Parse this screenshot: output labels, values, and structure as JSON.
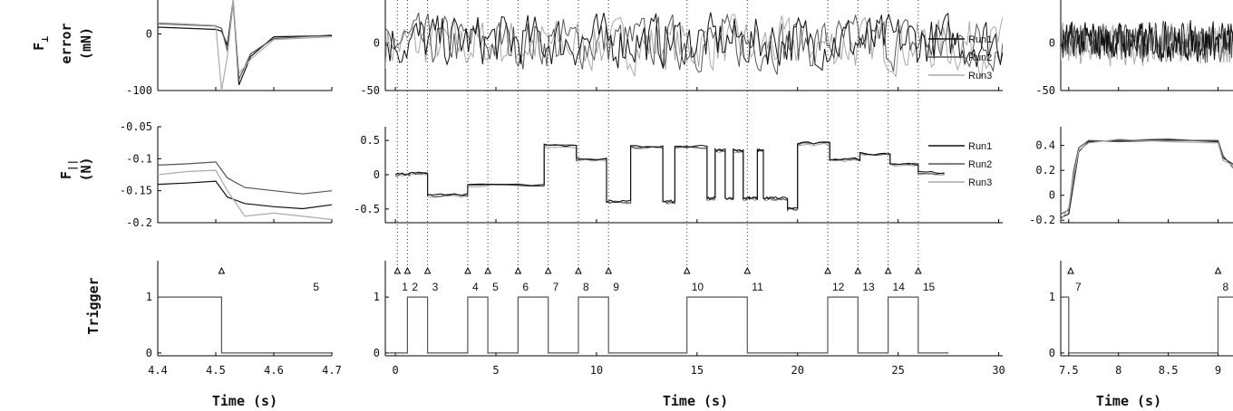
{
  "row_labels": {
    "fperp": {
      "symbol": "F",
      "sub": "⊥",
      "line2": "error",
      "line3": "(mN)"
    },
    "fpar": {
      "symbol": "F",
      "sub": "||",
      "line2": "(N)"
    },
    "trigger": {
      "text": "Trigger"
    }
  },
  "xlabel": "Time (s)",
  "legend": [
    "Run1",
    "Run2",
    "Run3"
  ],
  "series_colors": {
    "Run1": "#111111",
    "Run2": "#555555",
    "Run3": "#aaaaaa"
  },
  "panels": {
    "left": {
      "xticks": [
        "4.4",
        "4.5",
        "4.6",
        "4.7"
      ],
      "xvals": [
        4.4,
        4.5,
        4.6,
        4.7
      ],
      "xlim": [
        4.4,
        4.7
      ]
    },
    "middle": {
      "xticks": [
        "0",
        "5",
        "10",
        "15",
        "20",
        "25",
        "30"
      ],
      "xvals": [
        0,
        5,
        10,
        15,
        20,
        25,
        30
      ],
      "xlim": [
        -0.5,
        30.2
      ]
    },
    "right": {
      "xticks": [
        "7.5",
        "8",
        "8.5",
        "9"
      ],
      "xvals": [
        7.5,
        8,
        8.5,
        9
      ],
      "xlim": [
        7.42,
        9.15
      ]
    }
  },
  "chart_data": [
    {
      "type": "line",
      "panel": "left",
      "row": "F_perp_error",
      "ylabel": "F⊥ error (mN)",
      "yticks": [
        "0",
        "-100"
      ],
      "yvals": [
        0,
        -100
      ],
      "ylim": [
        -100,
        60
      ],
      "series": [
        {
          "name": "Run1",
          "x": [
            4.4,
            4.5,
            4.51,
            4.52,
            4.53,
            4.54,
            4.56,
            4.6,
            4.7
          ],
          "y": [
            12,
            8,
            5,
            -20,
            60,
            -90,
            -40,
            -5,
            -3
          ]
        },
        {
          "name": "Run2",
          "x": [
            4.4,
            4.5,
            4.51,
            4.52,
            4.53,
            4.54,
            4.56,
            4.6,
            4.7
          ],
          "y": [
            18,
            14,
            10,
            -30,
            55,
            -80,
            -35,
            -8,
            -2
          ]
        },
        {
          "name": "Run3",
          "x": [
            4.4,
            4.5,
            4.51,
            4.52,
            4.53,
            4.54,
            4.56,
            4.6,
            4.7
          ],
          "y": [
            20,
            15,
            -100,
            -40,
            60,
            -70,
            -45,
            -10,
            -5
          ]
        }
      ]
    },
    {
      "type": "line",
      "panel": "left",
      "row": "F_parallel",
      "ylabel": "F|| (N)",
      "yticks": [
        "-0.05",
        "-0.1",
        "-0.15",
        "-0.2"
      ],
      "yvals": [
        -0.05,
        -0.1,
        -0.15,
        -0.2
      ],
      "ylim": [
        -0.2,
        -0.05
      ],
      "series": [
        {
          "name": "Run1",
          "x": [
            4.4,
            4.45,
            4.5,
            4.52,
            4.55,
            4.6,
            4.65,
            4.7
          ],
          "y": [
            -0.14,
            -0.138,
            -0.135,
            -0.16,
            -0.17,
            -0.175,
            -0.178,
            -0.172
          ]
        },
        {
          "name": "Run2",
          "x": [
            4.4,
            4.45,
            4.5,
            4.52,
            4.55,
            4.6,
            4.65,
            4.7
          ],
          "y": [
            -0.11,
            -0.108,
            -0.105,
            -0.13,
            -0.145,
            -0.15,
            -0.155,
            -0.15
          ]
        },
        {
          "name": "Run3",
          "x": [
            4.4,
            4.45,
            4.5,
            4.52,
            4.55,
            4.6,
            4.65,
            4.7
          ],
          "y": [
            -0.125,
            -0.12,
            -0.118,
            -0.15,
            -0.19,
            -0.185,
            -0.19,
            -0.195
          ]
        }
      ]
    },
    {
      "type": "line",
      "panel": "left",
      "row": "Trigger",
      "ylabel": "Trigger",
      "yticks": [
        "1",
        "0"
      ],
      "yvals": [
        1,
        0
      ],
      "ylim": [
        -0.05,
        1.65
      ],
      "series": [
        {
          "name": "trigger",
          "x": [
            4.4,
            4.51,
            4.51,
            4.7
          ],
          "y": [
            1,
            1,
            0,
            0
          ]
        }
      ],
      "markers": [
        {
          "x": 4.51,
          "label": ""
        },
        {
          "x": 4.66,
          "label": "5",
          "text_only": true
        }
      ]
    },
    {
      "type": "line",
      "panel": "middle",
      "row": "F_perp_error",
      "ylabel": "F⊥ error (mN)",
      "yticks": [
        "0",
        "-50"
      ],
      "yvals": [
        0,
        -50
      ],
      "ylim": [
        -50,
        45
      ],
      "noise_amplitude": 25
    },
    {
      "type": "line",
      "panel": "middle",
      "row": "F_parallel",
      "ylabel": "F|| (N)",
      "yticks": [
        "0.5",
        "0",
        "-0.5"
      ],
      "yvals": [
        0.5,
        0,
        -0.5
      ],
      "ylim": [
        -0.7,
        0.7
      ],
      "steps": [
        [
          0,
          0
        ],
        [
          0.7,
          0.02
        ],
        [
          1.6,
          -0.3
        ],
        [
          3.6,
          -0.15
        ],
        [
          7.4,
          0.42
        ],
        [
          9,
          0.22
        ],
        [
          10.5,
          -0.4
        ],
        [
          11.7,
          0.4
        ],
        [
          13.3,
          -0.4
        ],
        [
          13.9,
          0.4
        ],
        [
          15.5,
          -0.35
        ],
        [
          15.9,
          0.35
        ],
        [
          16.4,
          -0.35
        ],
        [
          16.8,
          0.35
        ],
        [
          17.3,
          -0.35
        ],
        [
          17.6,
          -0.35
        ],
        [
          18,
          0.35
        ],
        [
          18.3,
          -0.35
        ],
        [
          18.8,
          -0.35
        ],
        [
          19.5,
          -0.5
        ],
        [
          20,
          0.45
        ],
        [
          21.6,
          0.22
        ],
        [
          23.1,
          0.3
        ],
        [
          24.6,
          0.15
        ],
        [
          26,
          0.02
        ],
        [
          27.3,
          0.02
        ]
      ]
    },
    {
      "type": "line",
      "panel": "middle",
      "row": "Trigger",
      "ylabel": "Trigger",
      "yticks": [
        "1",
        "0"
      ],
      "yvals": [
        1,
        0
      ],
      "ylim": [
        -0.05,
        1.65
      ],
      "series": [
        {
          "name": "trigger",
          "x": [
            -0.3,
            0.6,
            0.6,
            1.6,
            1.6,
            3.6,
            3.6,
            4.6,
            4.6,
            6.1,
            6.1,
            7.6,
            7.6,
            9.1,
            9.1,
            10.6,
            10.6,
            14.5,
            14.5,
            17.5,
            17.5,
            21.5,
            21.5,
            23,
            23,
            24.5,
            24.5,
            26,
            26,
            27.5
          ],
          "y": [
            0,
            0,
            1,
            1,
            0,
            0,
            1,
            1,
            0,
            0,
            1,
            1,
            0,
            0,
            1,
            1,
            0,
            0,
            1,
            1,
            0,
            0,
            1,
            1,
            0,
            0,
            1,
            1,
            0,
            0
          ]
        }
      ],
      "markers": [
        {
          "x": 0.1,
          "label": "1"
        },
        {
          "x": 0.6,
          "label": "2"
        },
        {
          "x": 1.6,
          "label": "3"
        },
        {
          "x": 3.6,
          "label": "4"
        },
        {
          "x": 4.6,
          "label": "5"
        },
        {
          "x": 6.1,
          "label": "6"
        },
        {
          "x": 7.6,
          "label": "7"
        },
        {
          "x": 9.1,
          "label": "8"
        },
        {
          "x": 10.6,
          "label": "9"
        },
        {
          "x": 14.5,
          "label": "10"
        },
        {
          "x": 17.5,
          "label": "11"
        },
        {
          "x": 21.5,
          "label": "12"
        },
        {
          "x": 23,
          "label": "13"
        },
        {
          "x": 24.5,
          "label": "14"
        },
        {
          "x": 26,
          "label": "15"
        }
      ]
    },
    {
      "type": "line",
      "panel": "right",
      "row": "F_perp_error",
      "ylabel": "F⊥ error (mN)",
      "yticks": [
        "0",
        "-50"
      ],
      "yvals": [
        0,
        -50
      ],
      "ylim": [
        -50,
        45
      ],
      "noise_amplitude": 18
    },
    {
      "type": "line",
      "panel": "right",
      "row": "F_parallel",
      "ylabel": "F|| (N)",
      "yticks": [
        "0.4",
        "0.2",
        "0",
        "-0.2"
      ],
      "yvals": [
        0.4,
        0.2,
        0,
        -0.2
      ],
      "ylim": [
        -0.22,
        0.55
      ],
      "series": [
        {
          "name": "Run1",
          "x": [
            7.42,
            7.5,
            7.55,
            7.6,
            7.7,
            8,
            8.5,
            9,
            9.05,
            9.15
          ],
          "y": [
            -0.18,
            -0.15,
            0.1,
            0.35,
            0.43,
            0.44,
            0.45,
            0.43,
            0.3,
            0.25
          ]
        },
        {
          "name": "Run2",
          "x": [
            7.42,
            7.5,
            7.55,
            7.6,
            7.7,
            8,
            8.5,
            9,
            9.05,
            9.15
          ],
          "y": [
            -0.15,
            -0.12,
            0.2,
            0.38,
            0.44,
            0.43,
            0.44,
            0.44,
            0.32,
            0.22
          ]
        },
        {
          "name": "Run3",
          "x": [
            7.42,
            7.5,
            7.55,
            7.6,
            7.7,
            8,
            8.5,
            9,
            9.05,
            9.15
          ],
          "y": [
            -0.2,
            -0.1,
            0.15,
            0.36,
            0.42,
            0.45,
            0.43,
            0.42,
            0.28,
            0.24
          ]
        }
      ]
    },
    {
      "type": "line",
      "panel": "right",
      "row": "Trigger",
      "ylabel": "Trigger",
      "yticks": [
        "1",
        "0"
      ],
      "yvals": [
        1,
        0
      ],
      "ylim": [
        -0.05,
        1.65
      ],
      "series": [
        {
          "name": "trigger",
          "x": [
            7.42,
            7.5,
            7.5,
            9,
            9,
            9.15
          ],
          "y": [
            1,
            1,
            0,
            0,
            1,
            1
          ]
        }
      ],
      "markers": [
        {
          "x": 7.52,
          "label": "7"
        },
        {
          "x": 9.0,
          "label": "8"
        }
      ]
    }
  ]
}
